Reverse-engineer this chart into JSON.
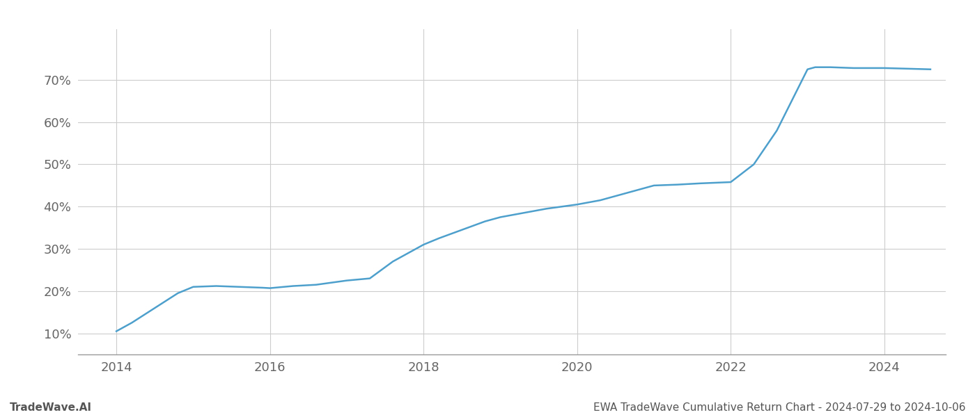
{
  "title": "",
  "footer_left": "TradeWave.AI",
  "footer_right": "EWA TradeWave Cumulative Return Chart - 2024-07-29 to 2024-10-06",
  "line_color": "#4d9fcc",
  "background_color": "#ffffff",
  "grid_color": "#cccccc",
  "x_years": [
    2014.0,
    2014.2,
    2014.5,
    2014.8,
    2015.0,
    2015.3,
    2015.6,
    2015.9,
    2016.0,
    2016.3,
    2016.6,
    2017.0,
    2017.3,
    2017.6,
    2018.0,
    2018.2,
    2018.5,
    2018.8,
    2019.0,
    2019.3,
    2019.6,
    2020.0,
    2020.3,
    2020.6,
    2021.0,
    2021.3,
    2021.6,
    2022.0,
    2022.3,
    2022.6,
    2023.0,
    2023.1,
    2023.3,
    2023.6,
    2023.8,
    2024.0,
    2024.6
  ],
  "y_values": [
    10.5,
    12.5,
    16.0,
    19.5,
    21.0,
    21.2,
    21.0,
    20.8,
    20.7,
    21.2,
    21.5,
    22.5,
    23.0,
    27.0,
    31.0,
    32.5,
    34.5,
    36.5,
    37.5,
    38.5,
    39.5,
    40.5,
    41.5,
    43.0,
    45.0,
    45.2,
    45.5,
    45.8,
    50.0,
    58.0,
    72.5,
    73.0,
    73.0,
    72.8,
    72.8,
    72.8,
    72.5
  ],
  "ylim": [
    5,
    82
  ],
  "xlim": [
    2013.5,
    2024.8
  ],
  "yticks": [
    10,
    20,
    30,
    40,
    50,
    60,
    70
  ],
  "xticks": [
    2014,
    2016,
    2018,
    2020,
    2022,
    2024
  ],
  "tick_fontsize": 13,
  "footer_fontsize": 11,
  "line_width": 1.8
}
